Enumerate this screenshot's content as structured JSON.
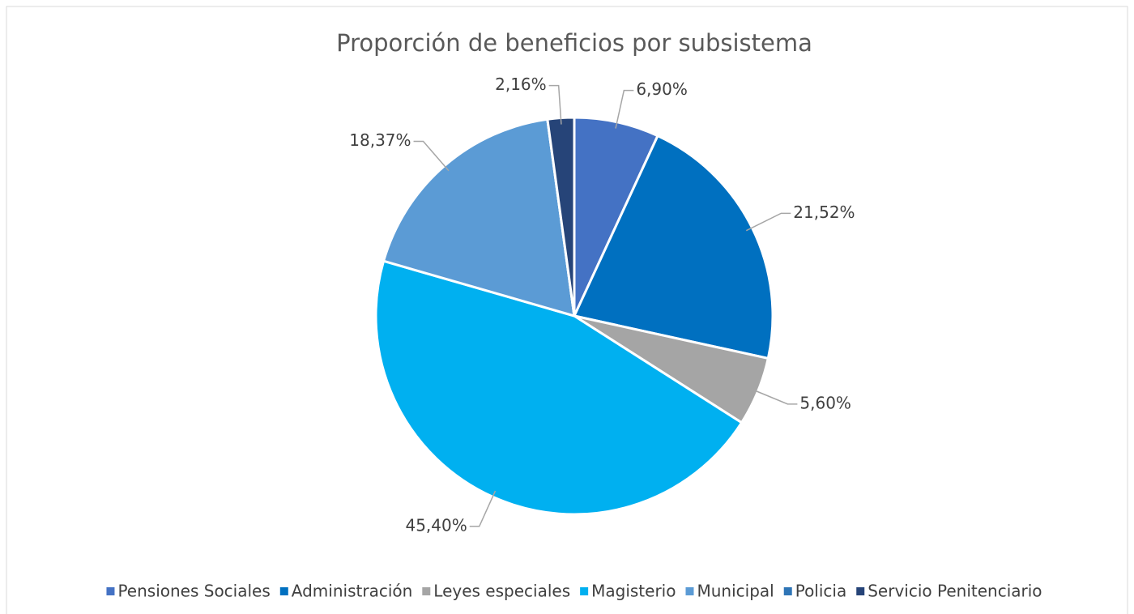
{
  "chart_data": {
    "type": "pie",
    "title": "Proporción de beneficios por subsistema",
    "categories": [
      "Pensiones Sociales",
      "Administración",
      "Leyes especiales",
      "Magisterio",
      "Municipal",
      "Policia",
      "Servicio Penitenciario"
    ],
    "values": [
      6.9,
      21.52,
      5.6,
      45.4,
      18.37,
      0,
      2.16
    ],
    "value_labels": [
      "6,90%",
      "21,52%",
      "5,60%",
      "45,40%",
      "18,37%",
      null,
      "2,16%"
    ],
    "colors": [
      "#4472c4",
      "#0070c0",
      "#a5a5a5",
      "#00b0f0",
      "#5b9bd5",
      "#2e75b6",
      "#264478"
    ],
    "legend": "bottom"
  }
}
